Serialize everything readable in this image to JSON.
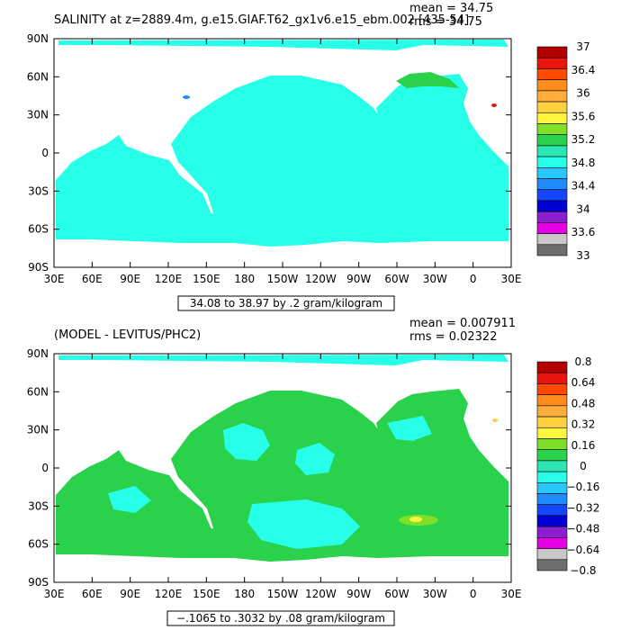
{
  "chart_data": [
    {
      "type": "heatmap",
      "title": "SALINITY at z=2889.4m, g.e15.GIAF.T62_gx1v6.e15_ebm.002 [435-54]",
      "stats": {
        "mean": "mean = 34.75",
        "rms": "rms = 34.75"
      },
      "x_ticks": [
        "30E",
        "60E",
        "90E",
        "120E",
        "150E",
        "180",
        "150W",
        "120W",
        "90W",
        "60W",
        "30W",
        "0",
        "30E"
      ],
      "y_ticks": [
        "90N",
        "60N",
        "30N",
        "0",
        "30S",
        "60S",
        "90S"
      ],
      "colorbar": {
        "labels": [
          "37",
          "36.4",
          "36",
          "35.6",
          "35.2",
          "34.8",
          "34.4",
          "34",
          "33.6",
          "33"
        ],
        "colors": [
          "#b30000",
          "#e8150f",
          "#ff4a00",
          "#ff8c1a",
          "#ffad3c",
          "#ffd040",
          "#fff53c",
          "#7fe028",
          "#2ad14a",
          "#2de6b4",
          "#28ffe8",
          "#28c8ff",
          "#1e8cff",
          "#1446ff",
          "#0000d2",
          "#8c1ed2",
          "#e600e6",
          "#c8c8c8",
          "#6e6e6e"
        ]
      },
      "range_note": "34.08 to 38.97 by .2 gram/kilogram"
    },
    {
      "type": "heatmap",
      "title": "(MODEL - LEVITUS/PHC2)",
      "stats": {
        "mean": "mean = 0.007911",
        "rms": "rms = 0.02322"
      },
      "x_ticks": [
        "30E",
        "60E",
        "90E",
        "120E",
        "150E",
        "180",
        "150W",
        "120W",
        "90W",
        "60W",
        "30W",
        "0",
        "30E"
      ],
      "y_ticks": [
        "90N",
        "60N",
        "30N",
        "0",
        "30S",
        "60S",
        "90S"
      ],
      "colorbar": {
        "labels": [
          "0.8",
          "0.64",
          "0.48",
          "0.32",
          "0.16",
          "0",
          "−0.16",
          "−0.32",
          "−0.48",
          "−0.64",
          "−0.8"
        ],
        "colors": [
          "#b30000",
          "#e8150f",
          "#ff4a00",
          "#ff8c1a",
          "#ffad3c",
          "#ffd040",
          "#fff53c",
          "#7fe028",
          "#2ad14a",
          "#2de6b4",
          "#28ffe8",
          "#28c8ff",
          "#1e8cff",
          "#1446ff",
          "#0000d2",
          "#8c1ed2",
          "#e600e6",
          "#c8c8c8",
          "#6e6e6e"
        ]
      },
      "range_note": "−.1065 to .3032 by .08 gram/kilogram"
    }
  ]
}
